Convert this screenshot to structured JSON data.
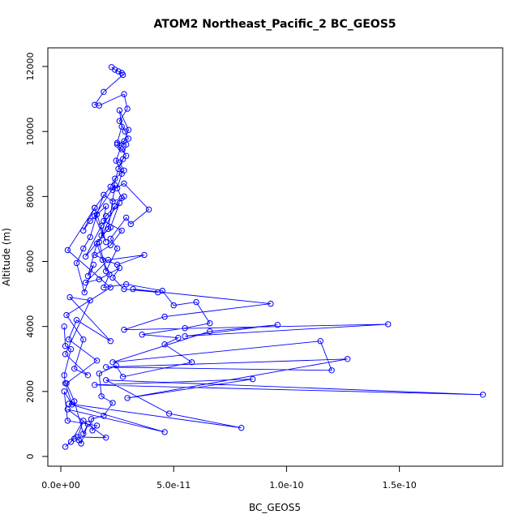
{
  "chart_data": {
    "type": "line",
    "title": "ATOM2 Northeast_Pacific_2 BC_GEOS5",
    "xlabel": "BC_GEOS5",
    "ylabel": "Altitude (m)",
    "xlim": [
      0,
      1.9e-10
    ],
    "ylim": [
      0,
      12100
    ],
    "x_ticks": [
      0,
      5e-11,
      1e-10,
      1.5e-10
    ],
    "x_tick_labels": [
      "0.0e+00",
      "5.0e-11",
      "1.0e-10",
      "1.5e-10"
    ],
    "y_ticks": [
      0,
      2000,
      4000,
      6000,
      8000,
      10000,
      12000
    ],
    "y_tick_labels": [
      "0",
      "2000",
      "4000",
      "6000",
      "8000",
      "10000",
      "12000"
    ],
    "grid": false,
    "series": [
      {
        "color": "#0000ff",
        "marker": "open-circle",
        "points": [
          [
            2.25e-11,
            11980
          ],
          [
            2.4e-11,
            11900
          ],
          [
            2.55e-11,
            11850
          ],
          [
            2.7e-11,
            11800
          ],
          [
            2.75e-11,
            11740
          ],
          [
            1.9e-11,
            11220
          ],
          [
            1.5e-11,
            10820
          ],
          [
            1.7e-11,
            10800
          ],
          [
            2.8e-11,
            11150
          ],
          [
            2.95e-11,
            10700
          ],
          [
            2.6e-11,
            10320
          ],
          [
            2.85e-11,
            10000
          ],
          [
            3e-11,
            9780
          ],
          [
            2.5e-11,
            9600
          ],
          [
            2.7e-11,
            9450
          ],
          [
            2.9e-11,
            9250
          ],
          [
            2.6e-11,
            9050
          ],
          [
            2.8e-11,
            8800
          ],
          [
            2.4e-11,
            8550
          ],
          [
            2.2e-11,
            8300
          ],
          [
            1.5e-11,
            7650
          ],
          [
            1e-11,
            6950
          ],
          [
            1.3e-11,
            7250
          ],
          [
            2e-11,
            7700
          ],
          [
            1.9e-11,
            7250
          ],
          [
            2.7e-11,
            6950
          ],
          [
            2.2e-11,
            6500
          ],
          [
            1.5e-11,
            6200
          ],
          [
            2.5e-11,
            5900
          ],
          [
            3.7e-11,
            6200
          ],
          [
            2.1e-11,
            6050
          ],
          [
            1.1e-11,
            5350
          ],
          [
            1.7e-11,
            5450
          ],
          [
            2.6e-11,
            5800
          ],
          [
            2.3e-11,
            5500
          ],
          [
            2.8e-11,
            5150
          ],
          [
            4.3e-11,
            5050
          ],
          [
            3.2e-11,
            5150
          ],
          [
            9.3e-11,
            4700
          ],
          [
            4.6e-11,
            4300
          ],
          [
            2.8e-11,
            3900
          ],
          [
            1.45e-10,
            4070
          ],
          [
            5.5e-11,
            3700
          ],
          [
            9.6e-11,
            4050
          ],
          [
            6.6e-11,
            3850
          ],
          [
            2.3e-11,
            2900
          ],
          [
            1.15e-10,
            3550
          ],
          [
            1.2e-10,
            2650
          ],
          [
            2e-11,
            2750
          ],
          [
            1.27e-10,
            3000
          ],
          [
            2.95e-11,
            1800
          ],
          [
            8.5e-11,
            2380
          ],
          [
            1.5e-11,
            2200
          ],
          [
            1.87e-10,
            1900
          ],
          [
            2e-11,
            2350
          ],
          [
            4.8e-11,
            1320
          ],
          [
            8e-11,
            880
          ],
          [
            3.5e-12,
            1620
          ],
          [
            4.6e-11,
            750
          ],
          [
            3e-12,
            1450
          ],
          [
            2e-11,
            580
          ],
          [
            7.5e-12,
            600
          ],
          [
            1e-11,
            1100
          ],
          [
            4.5e-12,
            450
          ],
          [
            2e-12,
            300
          ],
          [
            6e-12,
            550
          ],
          [
            8e-12,
            500
          ],
          [
            9e-12,
            400
          ],
          [
            1.2e-11,
            1000
          ],
          [
            1e-11,
            700
          ],
          [
            6e-12,
            1700
          ],
          [
            2.5e-12,
            2250
          ],
          [
            1.6e-11,
            2950
          ],
          [
            3.5e-12,
            3600
          ],
          [
            7e-12,
            4200
          ],
          [
            2.2e-11,
            3550
          ],
          [
            4e-12,
            4900
          ],
          [
            1.3e-11,
            4800
          ],
          [
            2e-12,
            3150
          ],
          [
            1.2e-11,
            2500
          ],
          [
            6e-12,
            2700
          ],
          [
            1e-11,
            3600
          ],
          [
            2.5e-12,
            4350
          ],
          [
            2.2e-11,
            5200
          ],
          [
            3e-12,
            6350
          ],
          [
            1.5e-11,
            7650
          ],
          [
            2e-11,
            6600
          ],
          [
            1.5e-11,
            7400
          ],
          [
            2.4e-11,
            8350
          ],
          [
            2.1e-11,
            7000
          ],
          [
            1.1e-11,
            6150
          ],
          [
            1.8e-11,
            7100
          ],
          [
            2.6e-11,
            7800
          ],
          [
            2.2e-11,
            7050
          ],
          [
            1.8e-11,
            6800
          ],
          [
            2e-11,
            7400
          ],
          [
            2.8e-11,
            8000
          ],
          [
            2.4e-11,
            7700
          ],
          [
            1.7e-11,
            6600
          ],
          [
            2e-11,
            5700
          ],
          [
            2.5e-11,
            6400
          ],
          [
            2.2e-11,
            6700
          ],
          [
            2.9e-11,
            7350
          ],
          [
            3.1e-11,
            7150
          ],
          [
            3.9e-11,
            7600
          ],
          [
            2.8e-11,
            8400
          ],
          [
            2.3e-11,
            8200
          ],
          [
            2.55e-11,
            8850
          ],
          [
            2.75e-11,
            9150
          ],
          [
            2.9e-11,
            9600
          ],
          [
            2.5e-11,
            9650
          ],
          [
            2.7e-11,
            10150
          ],
          [
            2.6e-11,
            10650
          ],
          [
            3e-11,
            10050
          ],
          [
            2.8e-11,
            9700
          ],
          [
            2.65e-11,
            9500
          ],
          [
            2.45e-11,
            9100
          ],
          [
            2.7e-11,
            8700
          ],
          [
            2.5e-11,
            8250
          ],
          [
            2.7e-11,
            7950
          ],
          [
            2.3e-11,
            7850
          ],
          [
            1.9e-11,
            8050
          ],
          [
            1.6e-11,
            7450
          ],
          [
            1.3e-11,
            6750
          ],
          [
            1e-11,
            6400
          ],
          [
            7e-12,
            5950
          ],
          [
            1.05e-11,
            5050
          ],
          [
            1.45e-11,
            5900
          ],
          [
            1.2e-11,
            5550
          ],
          [
            1.6e-11,
            6550
          ],
          [
            1.85e-11,
            6050
          ],
          [
            2.15e-11,
            5600
          ],
          [
            1.9e-11,
            5200
          ],
          [
            2.9e-11,
            5300
          ],
          [
            4.5e-11,
            5100
          ],
          [
            5e-11,
            4650
          ],
          [
            6e-11,
            4750
          ],
          [
            6.6e-11,
            4100
          ],
          [
            5.5e-11,
            3950
          ],
          [
            3.6e-11,
            3750
          ],
          [
            5.2e-11,
            3650
          ],
          [
            4.6e-11,
            3450
          ],
          [
            5.8e-11,
            2900
          ],
          [
            2.75e-11,
            2450
          ],
          [
            2.45e-11,
            2800
          ],
          [
            1.7e-11,
            2550
          ],
          [
            1.8e-11,
            1850
          ],
          [
            2.3e-11,
            1650
          ],
          [
            1.9e-11,
            1250
          ],
          [
            1.35e-11,
            1150
          ],
          [
            1.4e-11,
            800
          ],
          [
            1.6e-11,
            950
          ],
          [
            3e-12,
            1100
          ],
          [
            1.5e-12,
            2000
          ],
          [
            5e-12,
            1600
          ],
          [
            2e-12,
            2250
          ],
          [
            1.5e-12,
            2500
          ],
          [
            4.5e-12,
            3300
          ],
          [
            2e-12,
            3400
          ],
          [
            1.5e-12,
            4000
          ]
        ]
      }
    ]
  }
}
